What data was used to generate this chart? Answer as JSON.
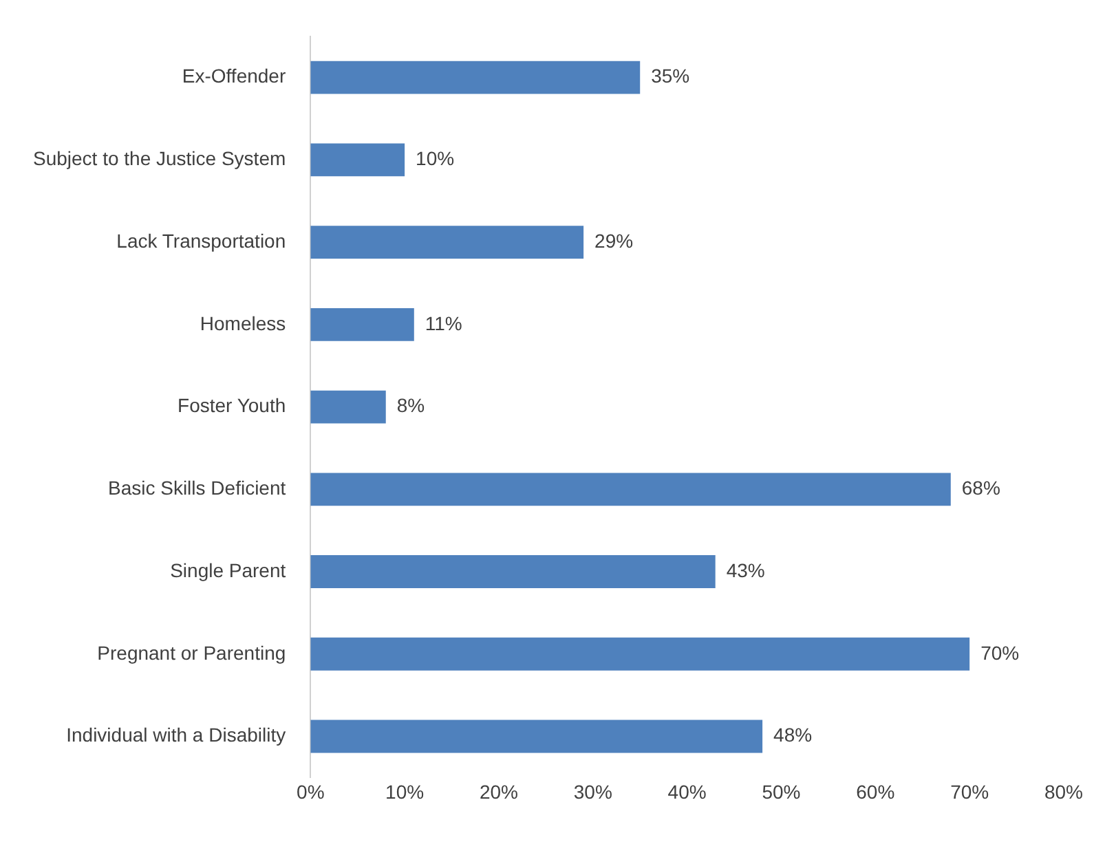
{
  "chart_data": {
    "type": "bar",
    "orientation": "horizontal",
    "categories": [
      "Ex-Offender",
      "Subject to the Justice System",
      "Lack Transportation",
      "Homeless",
      "Foster Youth",
      "Basic Skills Deficient",
      "Single Parent",
      "Pregnant or Parenting",
      "Individual with a Disability"
    ],
    "values": [
      35,
      10,
      29,
      11,
      8,
      68,
      43,
      70,
      48
    ],
    "value_labels": [
      "35%",
      "10%",
      "29%",
      "11%",
      "8%",
      "68%",
      "43%",
      "70%",
      "48%"
    ],
    "color": "#4f81bd",
    "xlim": [
      0,
      80
    ],
    "xticks": [
      {
        "value": 0,
        "label": "0%"
      },
      {
        "value": 10,
        "label": "10%"
      },
      {
        "value": 20,
        "label": "20%"
      },
      {
        "value": 30,
        "label": "30%"
      },
      {
        "value": 40,
        "label": "40%"
      },
      {
        "value": 50,
        "label": "50%"
      },
      {
        "value": 60,
        "label": "60%"
      },
      {
        "value": 70,
        "label": "70%"
      },
      {
        "value": 80,
        "label": "80%"
      }
    ],
    "grid": false,
    "legend": false
  }
}
